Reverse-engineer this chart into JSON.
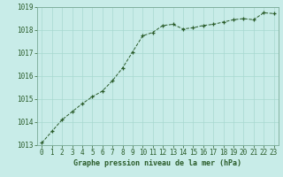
{
  "x": [
    0,
    1,
    2,
    3,
    4,
    5,
    6,
    7,
    8,
    9,
    10,
    11,
    12,
    13,
    14,
    15,
    16,
    17,
    18,
    19,
    20,
    21,
    22,
    23
  ],
  "y": [
    1013.1,
    1013.6,
    1014.1,
    1014.45,
    1014.8,
    1015.1,
    1015.35,
    1015.8,
    1016.35,
    1017.05,
    1017.75,
    1017.9,
    1018.2,
    1018.25,
    1018.05,
    1018.1,
    1018.2,
    1018.25,
    1018.35,
    1018.45,
    1018.5,
    1018.45,
    1018.75,
    1018.72
  ],
  "line_color": "#2a5c2a",
  "marker_color": "#2a5c2a",
  "bg_color": "#c8ece8",
  "grid_color": "#a8d8d0",
  "xlabel": "Graphe pression niveau de la mer (hPa)",
  "xlabel_color": "#2a5c2a",
  "tick_color": "#2a5c2a",
  "spine_color": "#7aaa96",
  "ylim": [
    1013.0,
    1019.0
  ],
  "xlim_min": -0.5,
  "xlim_max": 23.5,
  "yticks": [
    1013,
    1014,
    1015,
    1016,
    1017,
    1018,
    1019
  ],
  "xticks": [
    0,
    1,
    2,
    3,
    4,
    5,
    6,
    7,
    8,
    9,
    10,
    11,
    12,
    13,
    14,
    15,
    16,
    17,
    18,
    19,
    20,
    21,
    22,
    23
  ],
  "tick_fontsize": 5.5,
  "xlabel_fontsize": 6.0
}
